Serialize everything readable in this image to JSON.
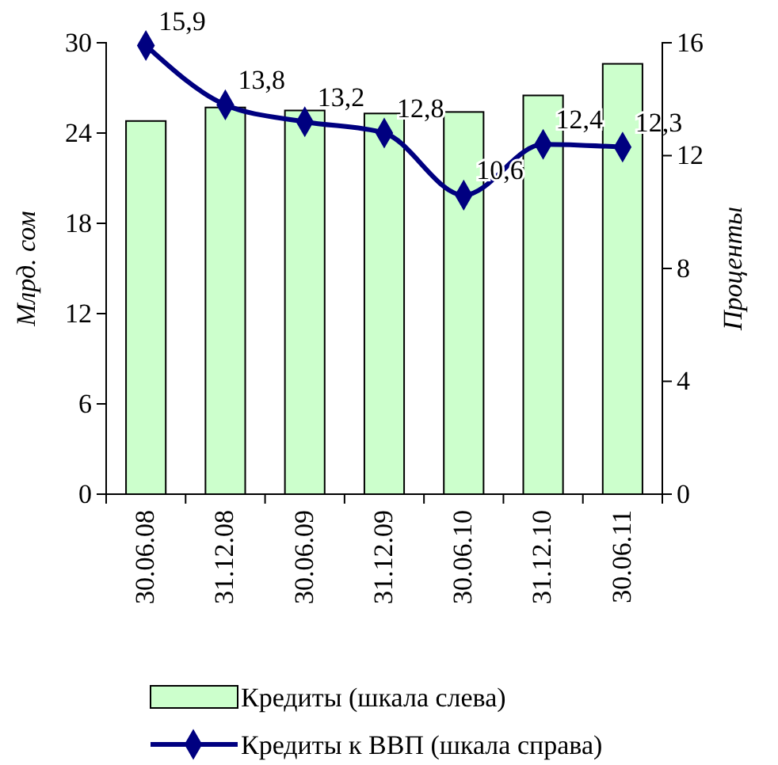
{
  "chart_data": {
    "type": "bar",
    "ylabel": "Млрд. сом",
    "y2label": "Проценты",
    "categories": [
      "30.06.08",
      "31.12.08",
      "30.06.09",
      "31.12.09",
      "30.06.10",
      "31.12.10",
      "30.06.11"
    ],
    "series": [
      {
        "name": "Кредиты (шкала слева)",
        "color": "#ccffcc",
        "values": [
          24.8,
          25.7,
          25.5,
          25.3,
          25.4,
          26.5,
          28.6
        ]
      },
      {
        "name": "Кредиты к ВВП (шкала справа)",
        "type": "line",
        "axis": "y2",
        "color": "#000080",
        "marker": "diamond",
        "values": [
          15.9,
          13.8,
          13.2,
          12.8,
          10.6,
          12.4,
          12.3
        ],
        "value_labels": [
          "15,9",
          "13,8",
          "13,2",
          "12,8",
          "10,6",
          "12,4",
          "12,3"
        ]
      }
    ],
    "ylim": [
      0,
      30
    ],
    "yticks": [
      0,
      6,
      12,
      18,
      24,
      30
    ],
    "y2lim": [
      0,
      16
    ],
    "y2ticks": [
      0,
      4,
      8,
      12,
      16
    ],
    "legend": "bottom",
    "grid": false
  }
}
